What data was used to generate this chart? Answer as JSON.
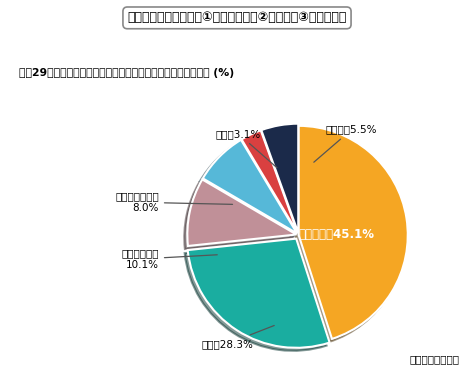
{
  "title_box": "受入人数の多い国は、①ベトナム　　②中国　　③フィリピン",
  "subtitle": "平成29年末　在留資格「技能実習」総在留外国人国籍別構成比 (%)",
  "source": "（法務省データ）",
  "values": [
    45.1,
    28.3,
    10.1,
    8.0,
    3.1,
    5.5
  ],
  "colors": [
    "#F5A623",
    "#1AADA0",
    "#C09098",
    "#56B8D8",
    "#D94040",
    "#1B2A4A"
  ],
  "explode": [
    0.0,
    0.04,
    0.02,
    0.02,
    0.02,
    0.02
  ],
  "background_color": "#ffffff",
  "startangle": 90,
  "label_vietnam": "ベトナム、45.1%",
  "label_china": "中国、28.3%",
  "label_philippines": "フィリピン、\n10.1%",
  "label_indonesia": "インドネシア、\n8.0%",
  "label_thai": "タイ、3.1%",
  "label_other": "その他、5.5%"
}
